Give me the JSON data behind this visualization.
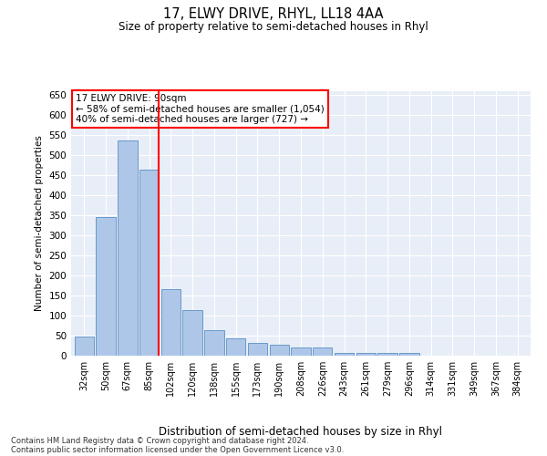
{
  "title": "17, ELWY DRIVE, RHYL, LL18 4AA",
  "subtitle": "Size of property relative to semi-detached houses in Rhyl",
  "xlabel": "Distribution of semi-detached houses by size in Rhyl",
  "ylabel": "Number of semi-detached properties",
  "categories": [
    "32sqm",
    "50sqm",
    "67sqm",
    "85sqm",
    "102sqm",
    "120sqm",
    "138sqm",
    "155sqm",
    "173sqm",
    "190sqm",
    "208sqm",
    "226sqm",
    "243sqm",
    "261sqm",
    "279sqm",
    "296sqm",
    "314sqm",
    "331sqm",
    "349sqm",
    "367sqm",
    "384sqm"
  ],
  "values": [
    47,
    345,
    538,
    465,
    167,
    113,
    63,
    43,
    32,
    28,
    20,
    20,
    7,
    7,
    7,
    7,
    1,
    0,
    1,
    0,
    0
  ],
  "bar_color": "#aec6e8",
  "bar_edge_color": "#5a8fc4",
  "vline_color": "red",
  "annotation_title": "17 ELWY DRIVE: 90sqm",
  "annotation_line1": "← 58% of semi-detached houses are smaller (1,054)",
  "annotation_line2": "40% of semi-detached houses are larger (727) →",
  "annotation_box_color": "white",
  "annotation_box_edge": "red",
  "ylim": [
    0,
    660
  ],
  "yticks": [
    0,
    50,
    100,
    150,
    200,
    250,
    300,
    350,
    400,
    450,
    500,
    550,
    600,
    650
  ],
  "background_color": "#e8eef7",
  "footnote1": "Contains HM Land Registry data © Crown copyright and database right 2024.",
  "footnote2": "Contains public sector information licensed under the Open Government Licence v3.0."
}
